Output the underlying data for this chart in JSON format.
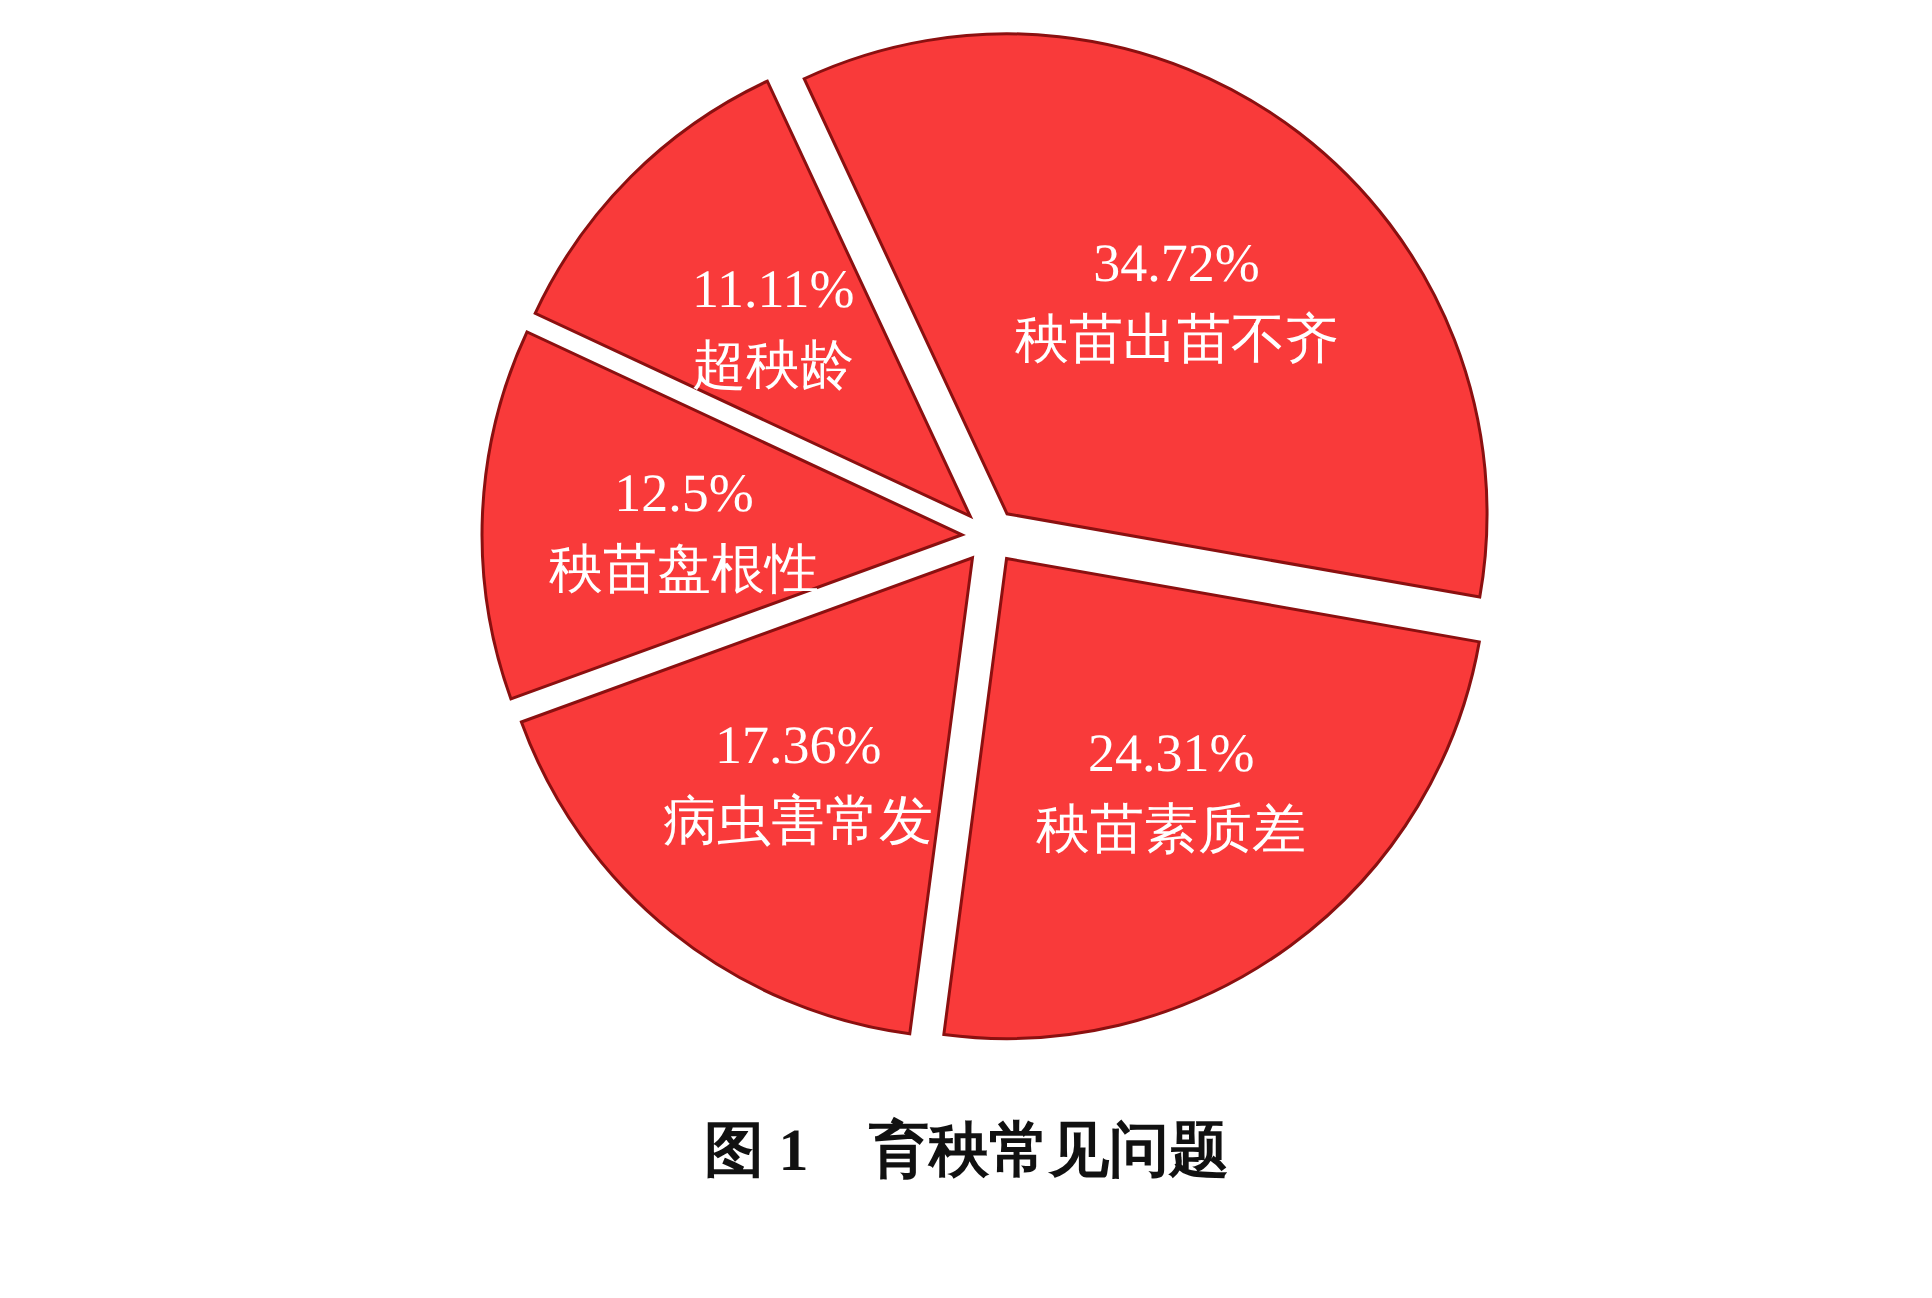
{
  "chart_data": {
    "type": "pie",
    "title": "图 1　育秧常见问题",
    "categories": [
      "秧苗出苗不齐",
      "秧苗素质差",
      "病虫害常发",
      "秧苗盘根性",
      "超秧龄"
    ],
    "values": [
      34.72,
      24.31,
      17.36,
      12.5,
      11.11
    ],
    "colors": [
      "#f93a3a",
      "#f93a3a",
      "#f93a3a",
      "#f93a3a",
      "#f93a3a"
    ],
    "value_labels": [
      "34.72%",
      "24.31%",
      "17.36%",
      "12.5%",
      "11.11%"
    ]
  }
}
